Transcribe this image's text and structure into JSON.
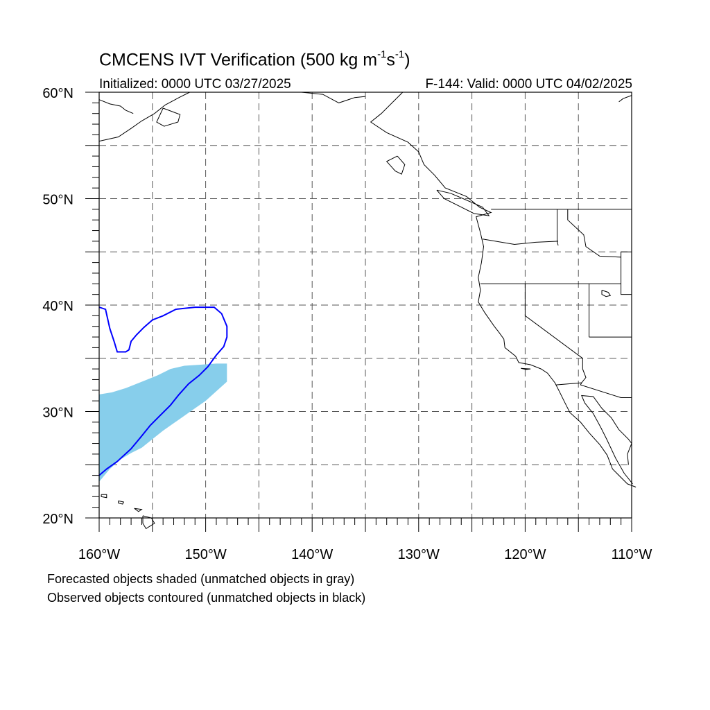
{
  "title": {
    "main": "CMCENS IVT Verification (500 kg m",
    "exp1": "-1",
    "mid": "s",
    "exp2": "-1",
    "end": ")"
  },
  "subtitle_left": "Initialized: 0000 UTC 03/27/2025",
  "subtitle_right": "F-144: Valid: 0000 UTC 04/02/2025",
  "footnotes": [
    "Forecasted objects shaded (unmatched objects in gray)",
    "Observed objects contoured (unmatched objects in black)"
  ],
  "map": {
    "lon_range": [
      -160,
      -110
    ],
    "lat_range": [
      20,
      60
    ],
    "lon_labels": [
      {
        "lon": -160,
        "text": "160°W"
      },
      {
        "lon": -150,
        "text": "150°W"
      },
      {
        "lon": -140,
        "text": "140°W"
      },
      {
        "lon": -130,
        "text": "130°W"
      },
      {
        "lon": -120,
        "text": "120°W"
      },
      {
        "lon": -110,
        "text": "110°W"
      }
    ],
    "lat_labels": [
      {
        "lat": 60,
        "text": "60°N"
      },
      {
        "lat": 50,
        "text": "50°N"
      },
      {
        "lat": 40,
        "text": "40°N"
      },
      {
        "lat": 30,
        "text": "30°N"
      },
      {
        "lat": 20,
        "text": "20°N"
      }
    ],
    "grid_lons": [
      -155,
      -150,
      -145,
      -140,
      -135,
      -130,
      -125,
      -120,
      -115
    ],
    "grid_lats": [
      55,
      50,
      45,
      40,
      35,
      30,
      25
    ],
    "forecast_color": "#87ceeb",
    "observed_color": "#0000ff",
    "forecast_object": [
      [
        -160,
        31.6
      ],
      [
        -158.8,
        31.8
      ],
      [
        -157.5,
        32.2
      ],
      [
        -156.5,
        32.6
      ],
      [
        -155.5,
        33.0
      ],
      [
        -154.5,
        33.4
      ],
      [
        -153.3,
        34.0
      ],
      [
        -152.0,
        34.3
      ],
      [
        -150.5,
        34.4
      ],
      [
        -149.0,
        34.5
      ],
      [
        -148.0,
        34.5
      ],
      [
        -148.0,
        32.8
      ],
      [
        -149.0,
        31.9
      ],
      [
        -150.0,
        31.0
      ],
      [
        -151.0,
        30.3
      ],
      [
        -152.0,
        29.6
      ],
      [
        -153.0,
        28.9
      ],
      [
        -154.0,
        28.2
      ],
      [
        -155.0,
        27.4
      ],
      [
        -156.0,
        26.6
      ],
      [
        -157.0,
        26.1
      ],
      [
        -158.0,
        25.5
      ],
      [
        -159.0,
        24.6
      ],
      [
        -160.0,
        23.4
      ]
    ],
    "observed_object": [
      [
        -160,
        39.8
      ],
      [
        -159.4,
        39.6
      ],
      [
        -159.0,
        37.8
      ],
      [
        -158.6,
        36.6
      ],
      [
        -158.3,
        35.6
      ],
      [
        -157.5,
        35.6
      ],
      [
        -157.2,
        35.8
      ],
      [
        -157.0,
        36.6
      ],
      [
        -156.5,
        37.2
      ],
      [
        -155.8,
        37.9
      ],
      [
        -155.0,
        38.6
      ],
      [
        -154.0,
        39.0
      ],
      [
        -152.8,
        39.6
      ],
      [
        -151.0,
        39.8
      ],
      [
        -149.2,
        39.8
      ],
      [
        -148.5,
        39.2
      ],
      [
        -148.0,
        38.0
      ],
      [
        -148.0,
        37.0
      ],
      [
        -148.3,
        36.1
      ],
      [
        -149.0,
        35.3
      ],
      [
        -149.8,
        34.2
      ],
      [
        -150.6,
        33.4
      ],
      [
        -151.6,
        32.6
      ],
      [
        -152.5,
        31.6
      ],
      [
        -153.3,
        30.6
      ],
      [
        -154.3,
        29.6
      ],
      [
        -155.2,
        28.7
      ],
      [
        -156.0,
        27.7
      ],
      [
        -157.0,
        26.5
      ],
      [
        -158.3,
        25.3
      ],
      [
        -159.3,
        24.6
      ],
      [
        -160.0,
        24.0
      ]
    ]
  }
}
